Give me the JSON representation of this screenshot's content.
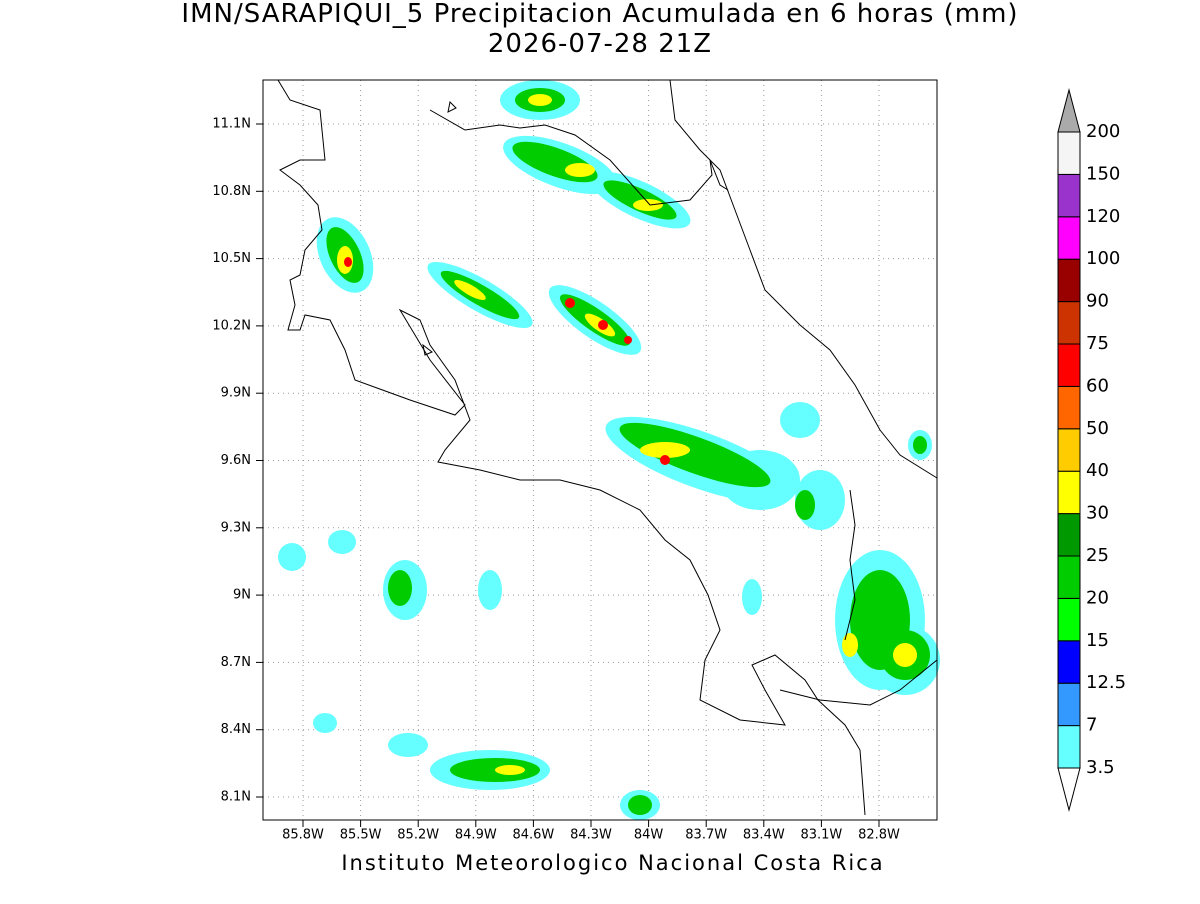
{
  "title": "IMN/SARAPIQUI_5 Precipitacion Acumulada en 6 horas (mm)",
  "subtitle": "2026-07-28 21Z",
  "lat_ticks": [
    "11.1N",
    "10.8N",
    "10.5N",
    "10.2N",
    "9.9N",
    "9.6N",
    "9.3N",
    "9N",
    "8.7N",
    "8.4N",
    "8.1N"
  ],
  "lon_ticks": [
    "85.8W",
    "85.5W",
    "85.2W",
    "84.9W",
    "84.6W",
    "84.3W",
    "84W",
    "83.7W",
    "83.4W",
    "83.1W",
    "82.8W"
  ],
  "colorbar": {
    "levels": [
      3.5,
      7,
      12.5,
      15,
      20,
      25,
      30,
      40,
      50,
      60,
      75,
      90,
      100,
      120,
      150,
      200
    ],
    "colors": [
      "#66ffff",
      "#3399ff",
      "#0000ff",
      "#00ff00",
      "#00cc00",
      "#009900",
      "#ffff00",
      "#ffcc00",
      "#ff6600",
      "#ff0000",
      "#cc3300",
      "#990000",
      "#ff00ff",
      "#9933cc",
      "#f5f5f5"
    ],
    "under_color": "#ffffff",
    "over_color": "#aaaaaa"
  },
  "footer": "Instituto Meteorologico Nacional Costa Rica"
}
